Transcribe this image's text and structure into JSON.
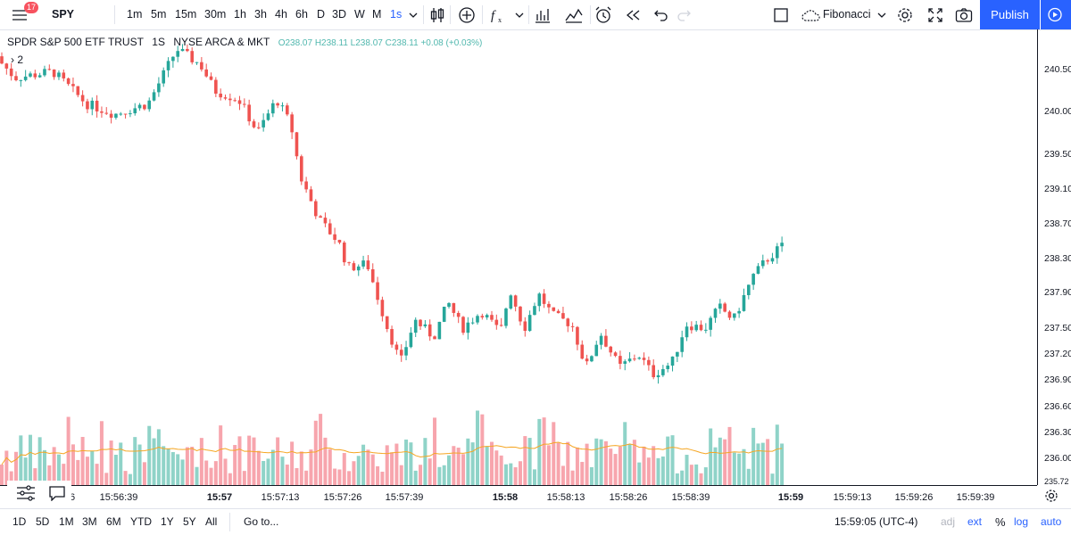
{
  "toolbar": {
    "notification_count": "17",
    "symbol": "SPY",
    "intervals": [
      "1m",
      "5m",
      "15m",
      "30m",
      "1h",
      "3h",
      "4h",
      "6h",
      "D",
      "3D",
      "W",
      "M",
      "1s"
    ],
    "active_interval": "1s",
    "drawing_tool": "Fibonacci",
    "publish_label": "Publish"
  },
  "legend": {
    "name": "SPDR S&P 500 ETF TRUST",
    "interval": "1S",
    "exchange": "NYSE ARCA & MKT",
    "ohlc_text": "O238.07 H238.11 L238.07 C238.11 +0.08 (+0.03%)",
    "studies_label": "2"
  },
  "time_axis": {
    "labels": [
      "15:56:39",
      "15:57",
      "15:57:13",
      "15:57:26",
      "15:57:39",
      "15:58",
      "15:58:13",
      "15:58:26",
      "15:58:39",
      "15:59",
      "15:59:13",
      "15:59:26",
      "15:59:39"
    ],
    "major": [
      "15:57",
      "15:58",
      "15:59"
    ],
    "cut_label": "6"
  },
  "price_axis": {
    "labels": [
      "240.50",
      "240.00",
      "239.50",
      "239.10",
      "238.70",
      "238.30",
      "237.90",
      "237.50",
      "237.20",
      "236.90",
      "236.60",
      "236.30",
      "236.00",
      "235.72"
    ]
  },
  "bottom": {
    "ranges": [
      "1D",
      "5D",
      "1M",
      "3M",
      "6M",
      "YTD",
      "1Y",
      "5Y",
      "All"
    ],
    "goto_label": "Go to...",
    "clock": "15:59:05 (UTC-4)",
    "adj_label": "adj",
    "ext_label": "ext",
    "percent_label": "%",
    "log_label": "log",
    "auto_label": "auto"
  },
  "colors": {
    "up": "#26a69a",
    "down": "#ef5350",
    "volume_up": "#8fd3c8",
    "volume_down": "#f7a5ad",
    "ma_line": "#f5a623",
    "accent": "#2962ff"
  },
  "chart_data": {
    "type": "candlestick",
    "symbol": "SPY",
    "interval": "1s",
    "price_range": [
      235.72,
      240.6
    ],
    "price_path": [
      {
        "x": "15:56:13",
        "y": 240.35
      },
      {
        "x": "15:56:18",
        "y": 240.05
      },
      {
        "x": "15:56:26",
        "y": 240.12
      },
      {
        "x": "15:56:33",
        "y": 239.75
      },
      {
        "x": "15:56:39",
        "y": 239.63
      },
      {
        "x": "15:56:46",
        "y": 239.75
      },
      {
        "x": "15:56:52",
        "y": 240.38
      },
      {
        "x": "15:56:57",
        "y": 240.2
      },
      {
        "x": "15:57:00",
        "y": 239.9
      },
      {
        "x": "15:57:05",
        "y": 239.8
      },
      {
        "x": "15:57:09",
        "y": 239.42
      },
      {
        "x": "15:57:13",
        "y": 239.8
      },
      {
        "x": "15:57:16",
        "y": 239.5
      },
      {
        "x": "15:57:18",
        "y": 238.9
      },
      {
        "x": "15:57:22",
        "y": 238.4
      },
      {
        "x": "15:57:26",
        "y": 238.15
      },
      {
        "x": "15:57:28",
        "y": 237.85
      },
      {
        "x": "15:57:32",
        "y": 237.9
      },
      {
        "x": "15:57:36",
        "y": 237.2
      },
      {
        "x": "15:57:39",
        "y": 236.75
      },
      {
        "x": "15:57:42",
        "y": 237.25
      },
      {
        "x": "15:57:46",
        "y": 237.05
      },
      {
        "x": "15:57:49",
        "y": 237.45
      },
      {
        "x": "15:57:52",
        "y": 237.15
      },
      {
        "x": "15:57:56",
        "y": 237.35
      },
      {
        "x": "15:58:00",
        "y": 237.1
      },
      {
        "x": "15:58:02",
        "y": 237.6
      },
      {
        "x": "15:58:05",
        "y": 237.15
      },
      {
        "x": "15:58:08",
        "y": 237.55
      },
      {
        "x": "15:58:11",
        "y": 237.3
      },
      {
        "x": "15:58:15",
        "y": 237.2
      },
      {
        "x": "15:58:18",
        "y": 236.7
      },
      {
        "x": "15:58:21",
        "y": 237.1
      },
      {
        "x": "15:58:25",
        "y": 236.7
      },
      {
        "x": "15:58:29",
        "y": 236.85
      },
      {
        "x": "15:58:32",
        "y": 236.62
      },
      {
        "x": "15:58:36",
        "y": 236.75
      },
      {
        "x": "15:58:39",
        "y": 237.2
      },
      {
        "x": "15:58:43",
        "y": 237.15
      },
      {
        "x": "15:58:46",
        "y": 237.4
      },
      {
        "x": "15:58:49",
        "y": 237.25
      },
      {
        "x": "15:58:53",
        "y": 237.75
      },
      {
        "x": "15:58:56",
        "y": 237.95
      },
      {
        "x": "15:58:59",
        "y": 238.1
      }
    ],
    "volume_ma_level": 0.3
  }
}
